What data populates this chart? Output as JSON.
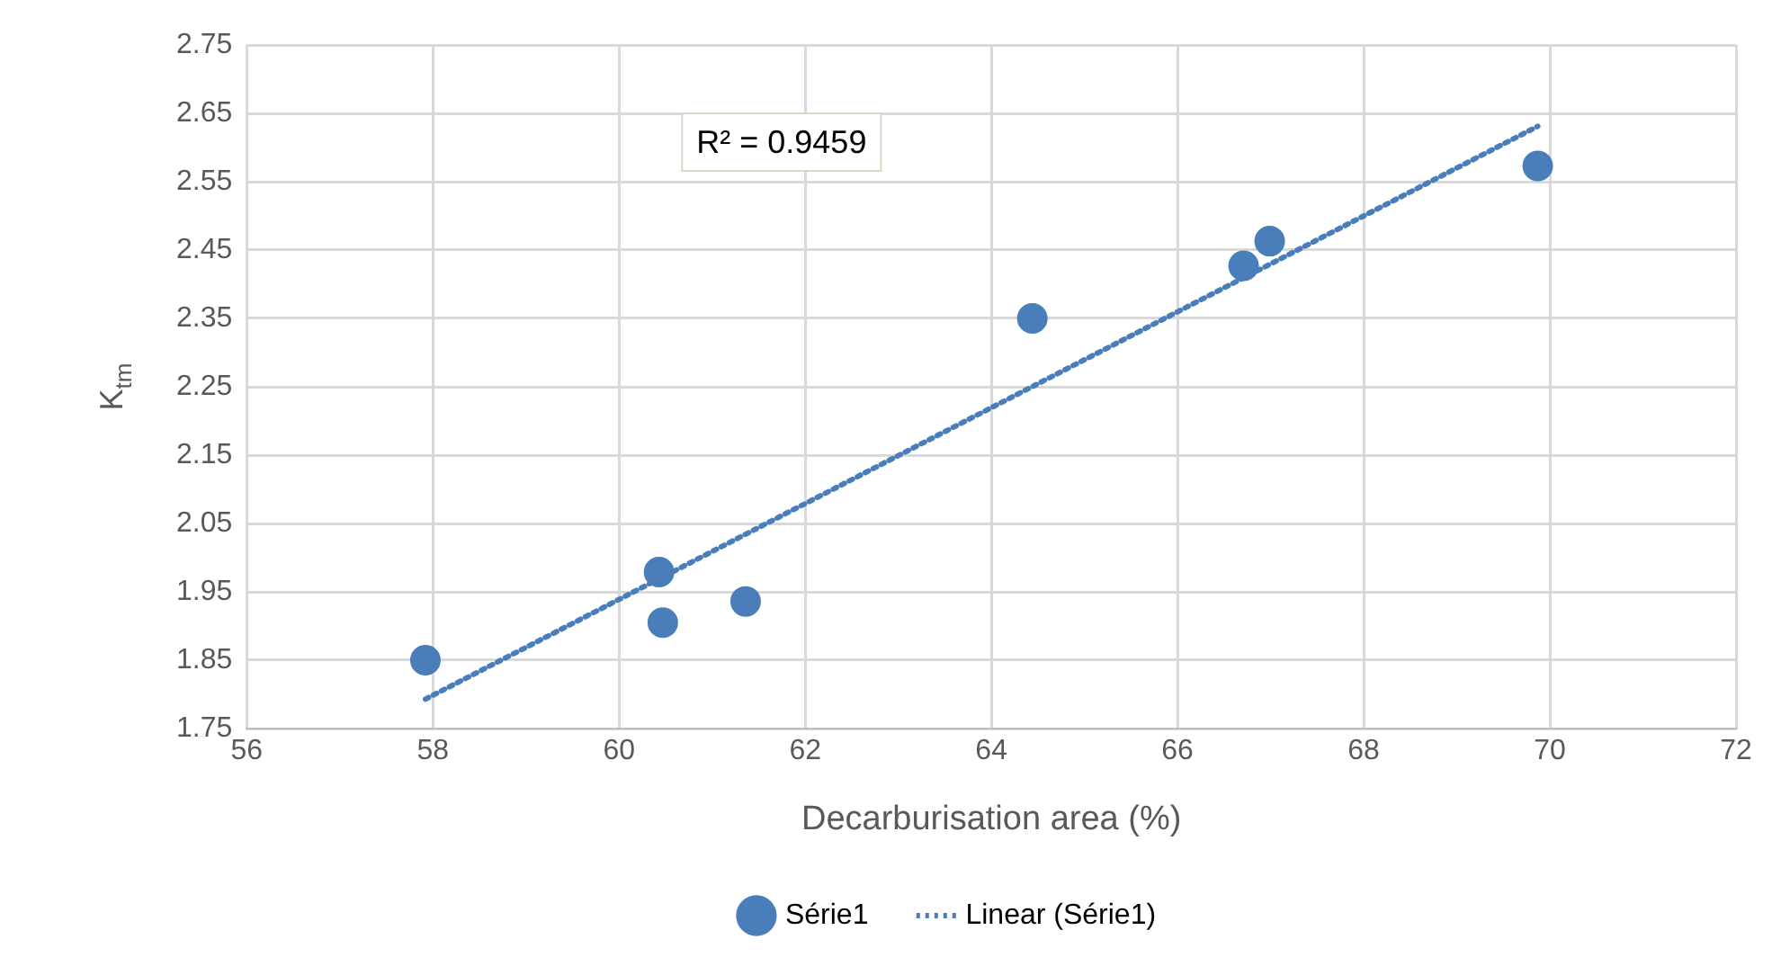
{
  "chart_data": {
    "type": "scatter",
    "xlabel": "Decarburisation area (%)",
    "ylabel": "K$_{tm}$",
    "xlim": [
      56,
      72
    ],
    "xticks": [
      56,
      58,
      60,
      62,
      64,
      66,
      68,
      70,
      72
    ],
    "ylim": [
      1.75,
      2.75
    ],
    "yticks": [
      {
        "value": 1.75,
        "label": "1.75"
      },
      {
        "value": 1.85,
        "label": "1.85"
      },
      {
        "value": 1.95,
        "label": "1.95"
      },
      {
        "value": 2.05,
        "label": "2.05"
      },
      {
        "value": 2.15,
        "label": "2.15"
      },
      {
        "value": 2.25,
        "label": "2.25"
      },
      {
        "value": 2.35,
        "label": "2.35"
      },
      {
        "value": 2.45,
        "label": "2.45"
      },
      {
        "value": 2.55,
        "label": "2.55"
      },
      {
        "value": 2.65,
        "label": "2.65"
      },
      {
        "value": 2.75,
        "label": "2.75"
      }
    ],
    "grid": true,
    "legend": "bottom",
    "annotations": [
      "R² = 0.9459"
    ],
    "series": [
      {
        "name": "Série1",
        "type": "scatter",
        "color": "#4a7ebb",
        "marker": "circle",
        "x": [
          57.92,
          60.43,
          60.47,
          61.36,
          64.44,
          66.71,
          66.99,
          69.87
        ],
        "values": [
          1.85,
          1.979,
          1.905,
          1.936,
          2.35,
          2.427,
          2.463,
          2.573
        ]
      },
      {
        "name": "Linear (Série1)",
        "type": "line",
        "color": "#4a7ebb",
        "marker": "none",
        "line_style": "dotted",
        "x": [
          57.92,
          69.87
        ],
        "values": [
          1.793,
          2.631
        ]
      }
    ]
  }
}
